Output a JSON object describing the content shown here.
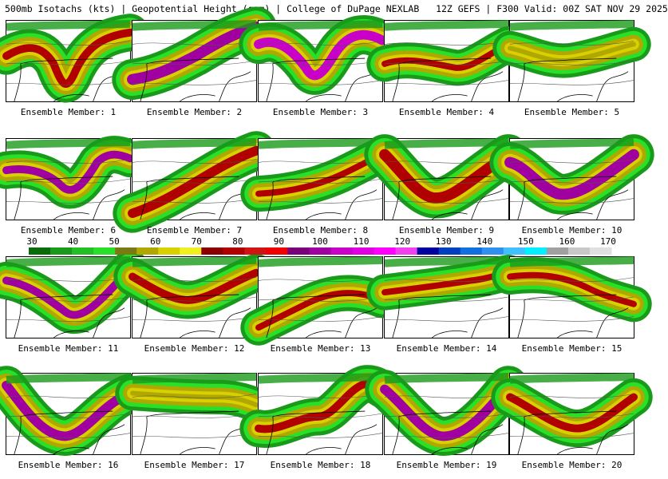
{
  "header": {
    "left": "500mb Isotachs (kts) | Geopotential Height (gpm) | College of DuPage NEXLAB",
    "right": "12Z GEFS | F300 Valid: 00Z SAT NOV 29 2025"
  },
  "colorbar": {
    "labels": [
      "30",
      "40",
      "50",
      "60",
      "70",
      "80",
      "90",
      "100",
      "110",
      "120",
      "130",
      "140",
      "150",
      "160",
      "170"
    ],
    "colors": [
      "#0a6b0a",
      "#1a9a1a",
      "#22c022",
      "#28e028",
      "#7a7a14",
      "#b0a800",
      "#d8d000",
      "#f0f020",
      "#8a0000",
      "#b00000",
      "#d01414",
      "#f00000",
      "#780078",
      "#a000a0",
      "#c800c8",
      "#e000e0",
      "#ff00ff",
      "#f040f0",
      "#0000a0",
      "#0040c0",
      "#1070e0",
      "#3090f0",
      "#40c0ff",
      "#00f0ff",
      "#a0a0a0",
      "#c8c8c8",
      "#e0e0e0"
    ]
  },
  "panels": [
    {
      "caption": "Ensemble Member: 1"
    },
    {
      "caption": "Ensemble Member: 2"
    },
    {
      "caption": "Ensemble Member: 3"
    },
    {
      "caption": "Ensemble Member: 4"
    },
    {
      "caption": "Ensemble Member: 5"
    },
    {
      "caption": "Ensemble Member: 6"
    },
    {
      "caption": "Ensemble Member: 7"
    },
    {
      "caption": "Ensemble Member: 8"
    },
    {
      "caption": "Ensemble Member: 9"
    },
    {
      "caption": "Ensemble Member: 10"
    },
    {
      "caption": "Ensemble Member: 11"
    },
    {
      "caption": "Ensemble Member: 12"
    },
    {
      "caption": "Ensemble Member: 13"
    },
    {
      "caption": "Ensemble Member: 14"
    },
    {
      "caption": "Ensemble Member: 15"
    },
    {
      "caption": "Ensemble Member: 16"
    },
    {
      "caption": "Ensemble Member: 17"
    },
    {
      "caption": "Ensemble Member: 18"
    },
    {
      "caption": "Ensemble Member: 19"
    },
    {
      "caption": "Ensemble Member: 20"
    }
  ]
}
